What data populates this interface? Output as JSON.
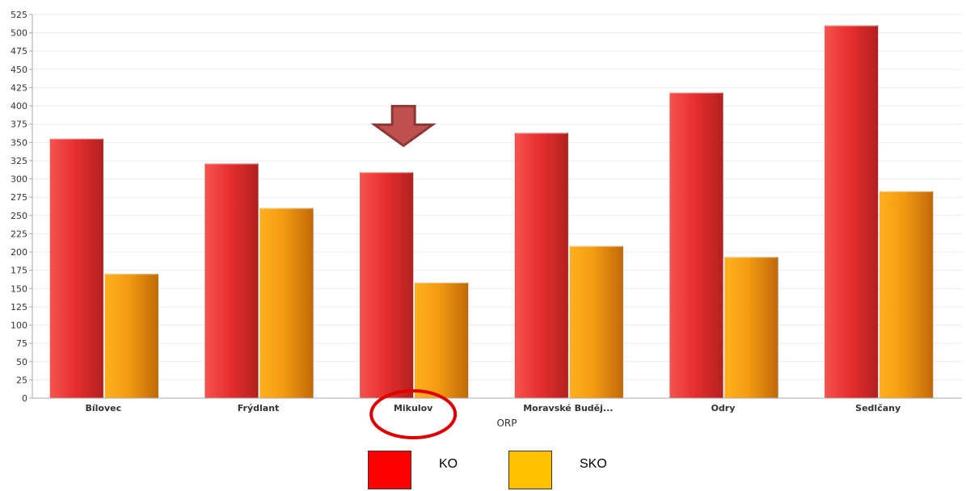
{
  "chart_data": {
    "type": "bar",
    "title": "",
    "xlabel": "ORP",
    "ylabel": "",
    "ylim": [
      0,
      525
    ],
    "ytick_step": 25,
    "grid": true,
    "categories": [
      "Bílovec",
      "Frýdlant",
      "Mikulov",
      "Moravské Buděj...",
      "Odry",
      "Sedlčany"
    ],
    "series": [
      {
        "name": "KO",
        "color": "#e8302f",
        "values": [
          355,
          321,
          309,
          363,
          418,
          510
        ]
      },
      {
        "name": "SKO",
        "color": "#f39a12",
        "values": [
          170,
          260,
          158,
          208,
          193,
          283
        ]
      }
    ],
    "annotations": {
      "arrow_category": "Mikulov",
      "arrow_color": "#c0504d",
      "circled_category": "Mikulov",
      "circle_color": "#e00000"
    }
  },
  "legend": [
    {
      "label": "KO",
      "color": "#ff0000"
    },
    {
      "label": "SKO",
      "color": "#ffc000"
    }
  ]
}
